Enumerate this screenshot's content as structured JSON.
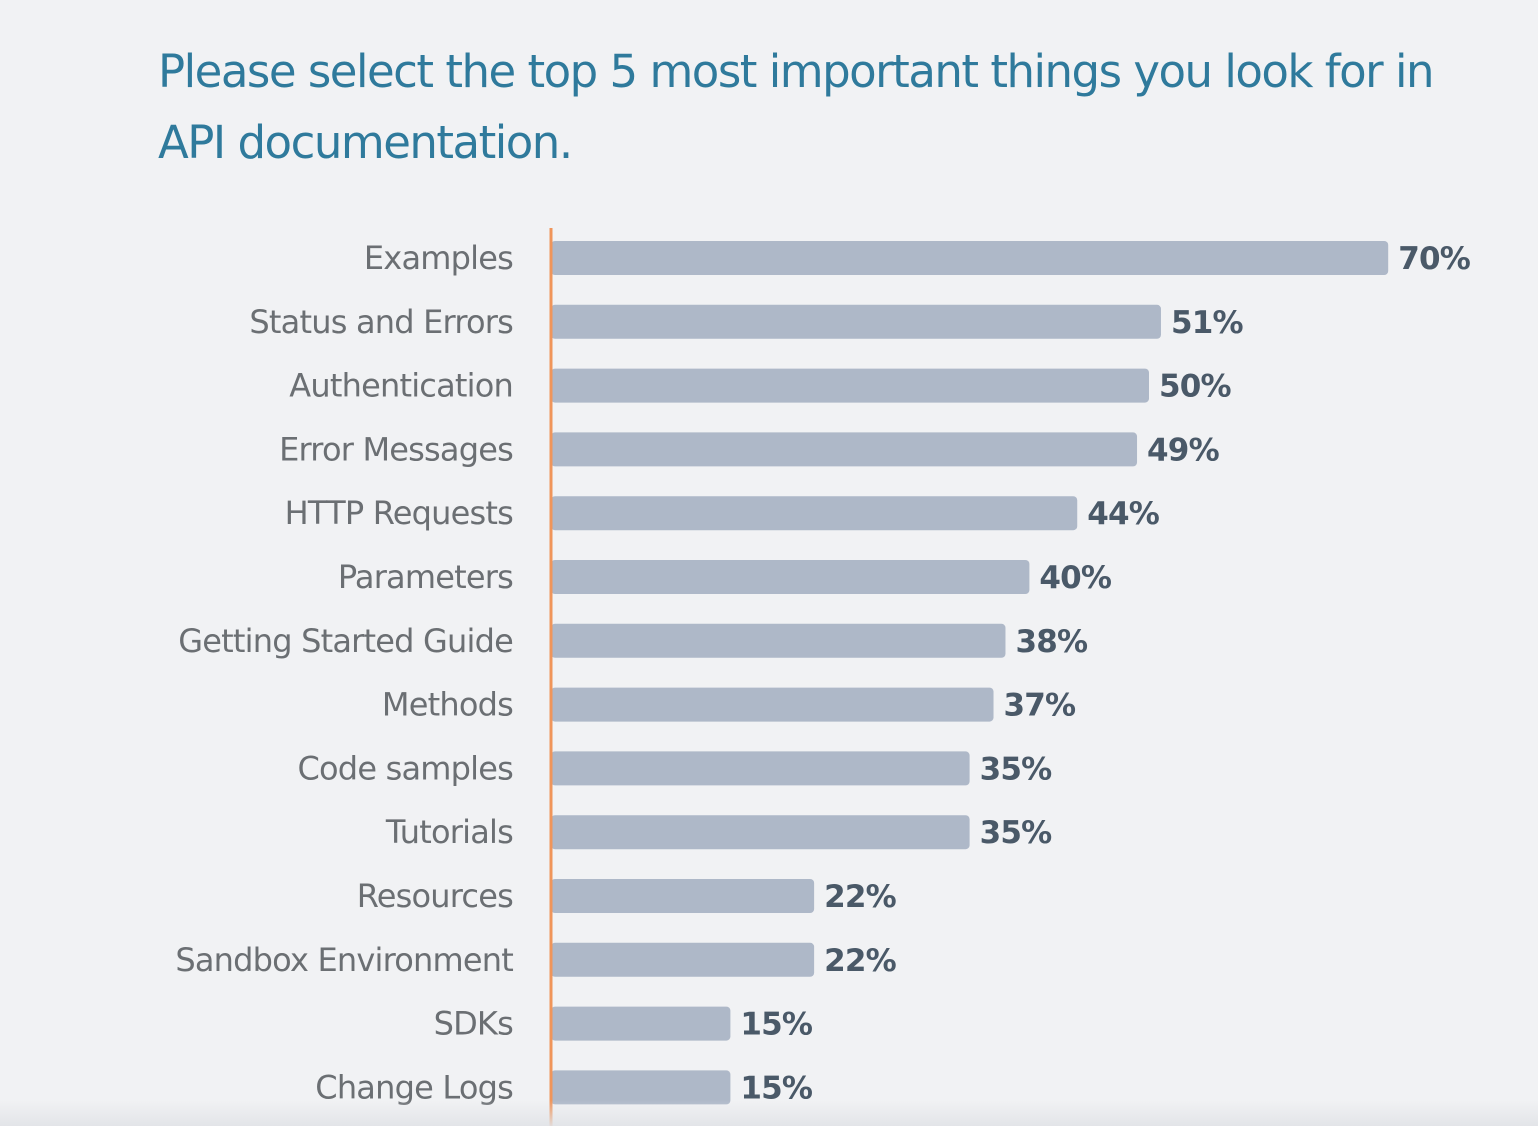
{
  "colors": {
    "title": "#2f7a9c",
    "bar": "#aeb8c8",
    "axis": "#f0955a",
    "category_text": "#6b6f73",
    "value_text": "#4a5968",
    "background": "#f1f2f4"
  },
  "chart_data": {
    "type": "bar",
    "orientation": "horizontal",
    "title": "Please select the top 5 most important things you look for in API documentation.",
    "xlabel": "",
    "ylabel": "",
    "grid": false,
    "legend": "none",
    "value_suffix": "%",
    "xlim": [
      0,
      70
    ],
    "categories": [
      "Examples",
      "Status and Errors",
      "Authentication",
      "Error Messages",
      "HTTP Requests",
      "Parameters",
      "Getting Started Guide",
      "Methods",
      "Code samples",
      "Tutorials",
      "Resources",
      "Sandbox Environment",
      "SDKs",
      "Change Logs"
    ],
    "values": [
      70,
      51,
      50,
      49,
      44,
      40,
      38,
      37,
      35,
      35,
      22,
      22,
      15,
      15
    ],
    "data_labels": [
      "70%",
      "51%",
      "50%",
      "49%",
      "44%",
      "40%",
      "38%",
      "37%",
      "35%",
      "35%",
      "22%",
      "22%",
      "15%",
      "15%"
    ]
  }
}
